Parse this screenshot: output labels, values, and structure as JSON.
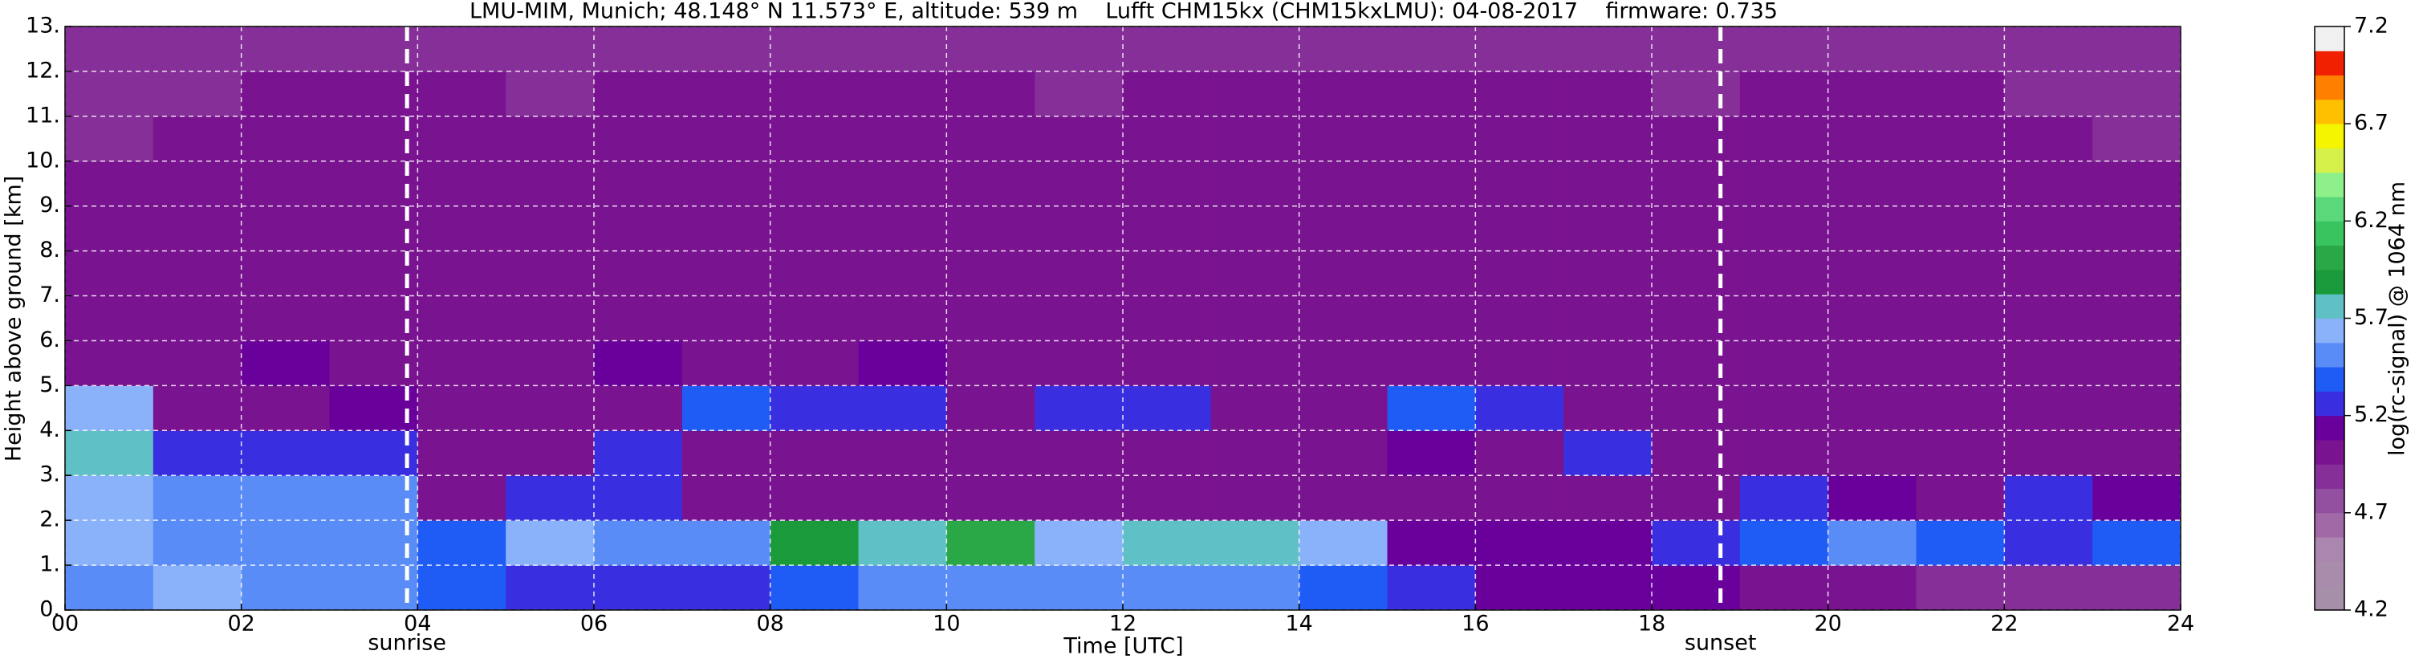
{
  "chart_data": {
    "type": "heatmap",
    "title": "LMU-MIM, Munich; 48.148° N 11.573° E, altitude: 539 m    Lufft CHM15kx (CHM15kxLMU): 04-08-2017    firmware: 0.735",
    "x_label": "Time [UTC]",
    "y_label": "Height above ground [km]",
    "colorbar_label": "log(rc-signal) @ 1064 nm",
    "xlim": [
      0,
      24
    ],
    "ylim": [
      0,
      13
    ],
    "xticks": [
      {
        "value": 0,
        "label": "00"
      },
      {
        "value": 2,
        "label": "02"
      },
      {
        "value": 4,
        "label": "04"
      },
      {
        "value": 6,
        "label": "06"
      },
      {
        "value": 8,
        "label": "08"
      },
      {
        "value": 10,
        "label": "10"
      },
      {
        "value": 12,
        "label": "12"
      },
      {
        "value": 14,
        "label": "14"
      },
      {
        "value": 16,
        "label": "16"
      },
      {
        "value": 18,
        "label": "18"
      },
      {
        "value": 20,
        "label": "20"
      },
      {
        "value": 22,
        "label": "22"
      },
      {
        "value": 24,
        "label": "24"
      }
    ],
    "yticks": [
      {
        "value": 0,
        "label": "0."
      },
      {
        "value": 1,
        "label": "1."
      },
      {
        "value": 2,
        "label": "2."
      },
      {
        "value": 3,
        "label": "3."
      },
      {
        "value": 4,
        "label": "4."
      },
      {
        "value": 5,
        "label": "5."
      },
      {
        "value": 6,
        "label": "6."
      },
      {
        "value": 7,
        "label": "7."
      },
      {
        "value": 8,
        "label": "8."
      },
      {
        "value": 9,
        "label": "9."
      },
      {
        "value": 10,
        "label": "10."
      },
      {
        "value": 11,
        "label": "11."
      },
      {
        "value": 12,
        "label": "12."
      },
      {
        "value": 13,
        "label": "13."
      }
    ],
    "clim": [
      4.2,
      7.2
    ],
    "cticks": [
      4.2,
      4.7,
      5.2,
      5.7,
      6.2,
      6.7,
      7.2
    ],
    "colormap": [
      "#a58fa9",
      "#a98cac",
      "#ab86ae",
      "#a16aa6",
      "#9450a0",
      "#862f98",
      "#7a1390",
      "#6a009c",
      "#3a2fe0",
      "#1f5cf5",
      "#5a8cf7",
      "#8ab2fb",
      "#5fc0c6",
      "#1a9a3b",
      "#2aa848",
      "#39c45f",
      "#5ad87a",
      "#8ef08a",
      "#d6f04a",
      "#f5f500",
      "#ffc000",
      "#ff8000",
      "#f02000",
      "#f0f0f0"
    ],
    "grid": true,
    "annotations": [
      {
        "text": "sunrise",
        "x": 3.88
      },
      {
        "text": "sunset",
        "x": 18.78
      }
    ],
    "x": [
      0.5,
      1.5,
      2.5,
      3.5,
      4.5,
      5.5,
      6.5,
      7.5,
      8.5,
      9.5,
      10.5,
      11.5,
      12.5,
      13.5,
      14.5,
      15.5,
      16.5,
      17.5,
      18.5,
      19.5,
      20.5,
      21.5,
      22.5,
      23.5
    ],
    "y": [
      0.5,
      1.5,
      2.5,
      3.5,
      4.5,
      5.5,
      6.5,
      7.5,
      8.5,
      9.5,
      10.5,
      11.5,
      12.5
    ],
    "z": [
      [
        5.5,
        5.6,
        5.5,
        5.5,
        5.4,
        5.3,
        5.2,
        5.2,
        5.4,
        5.5,
        5.5,
        5.5,
        5.5,
        5.5,
        5.4,
        5.2,
        5.1,
        5.1,
        5.1,
        5.0,
        5.0,
        4.9,
        4.9,
        4.9
      ],
      [
        5.6,
        5.5,
        5.5,
        5.5,
        5.4,
        5.6,
        5.5,
        5.5,
        5.9,
        5.7,
        6.0,
        5.6,
        5.7,
        5.8,
        5.6,
        5.1,
        5.1,
        5.1,
        5.2,
        5.4,
        5.5,
        5.4,
        5.3,
        5.4
      ],
      [
        5.6,
        5.5,
        5.5,
        5.5,
        5.0,
        5.2,
        5.2,
        5.0,
        5.0,
        5.0,
        5.0,
        5.0,
        5.0,
        5.0,
        5.0,
        5.0,
        5.0,
        5.0,
        5.0,
        5.2,
        5.1,
        5.0,
        5.2,
        5.1
      ],
      [
        5.8,
        5.3,
        5.2,
        5.3,
        5.0,
        5.0,
        5.2,
        5.0,
        5.0,
        5.0,
        5.0,
        5.0,
        5.0,
        5.0,
        5.0,
        5.1,
        5.0,
        5.3,
        5.0,
        5.0,
        5.0,
        5.0,
        5.0,
        5.0
      ],
      [
        5.6,
        5.0,
        5.0,
        5.1,
        5.0,
        5.0,
        5.0,
        5.4,
        5.2,
        5.3,
        5.0,
        5.2,
        5.2,
        5.0,
        5.0,
        5.4,
        5.2,
        5.0,
        5.0,
        5.0,
        5.0,
        5.0,
        5.0,
        5.0
      ],
      [
        5.0,
        5.0,
        5.1,
        5.0,
        5.0,
        5.0,
        5.1,
        5.0,
        5.0,
        5.1,
        5.0,
        5.0,
        5.0,
        5.0,
        5.0,
        5.0,
        5.0,
        5.0,
        5.0,
        5.0,
        5.0,
        5.0,
        5.0,
        5.0
      ],
      [
        5.0,
        5.0,
        5.0,
        5.0,
        5.0,
        5.0,
        5.0,
        5.0,
        5.0,
        5.0,
        5.0,
        5.0,
        5.0,
        5.0,
        5.0,
        5.0,
        5.0,
        5.0,
        5.0,
        5.0,
        5.0,
        5.0,
        5.0,
        5.0
      ],
      [
        5.0,
        5.0,
        5.0,
        5.0,
        5.0,
        5.0,
        5.0,
        5.0,
        5.0,
        5.0,
        5.0,
        5.0,
        5.0,
        5.0,
        5.0,
        5.0,
        5.0,
        5.0,
        5.0,
        5.0,
        5.0,
        5.0,
        5.0,
        5.0
      ],
      [
        5.0,
        5.0,
        5.0,
        5.0,
        5.0,
        5.0,
        5.0,
        5.0,
        5.0,
        5.0,
        5.0,
        5.0,
        5.0,
        5.0,
        5.0,
        5.0,
        5.0,
        5.0,
        5.0,
        5.0,
        5.0,
        5.0,
        5.0,
        5.0
      ],
      [
        5.0,
        5.0,
        5.0,
        5.0,
        5.0,
        5.0,
        5.0,
        5.0,
        5.0,
        5.0,
        5.0,
        5.0,
        5.0,
        5.0,
        5.0,
        5.0,
        5.0,
        5.0,
        5.0,
        5.0,
        5.0,
        5.0,
        5.0,
        5.0
      ],
      [
        4.9,
        5.0,
        5.0,
        5.0,
        5.0,
        5.0,
        5.0,
        5.0,
        5.0,
        5.0,
        5.0,
        5.0,
        5.0,
        5.0,
        5.0,
        5.0,
        5.0,
        5.0,
        5.0,
        5.0,
        5.0,
        5.0,
        5.0,
        4.9
      ],
      [
        4.9,
        4.9,
        5.0,
        5.0,
        5.0,
        4.9,
        5.0,
        5.0,
        5.0,
        5.0,
        5.0,
        4.9,
        5.0,
        5.0,
        5.0,
        5.0,
        5.0,
        5.0,
        4.9,
        5.0,
        5.0,
        5.0,
        4.9,
        4.9
      ],
      [
        4.9,
        4.9,
        4.9,
        4.9,
        4.9,
        4.9,
        4.9,
        4.9,
        4.9,
        4.9,
        4.9,
        4.9,
        4.9,
        4.9,
        4.9,
        4.9,
        4.9,
        4.9,
        4.9,
        4.9,
        4.9,
        4.9,
        4.9,
        4.9
      ]
    ]
  }
}
